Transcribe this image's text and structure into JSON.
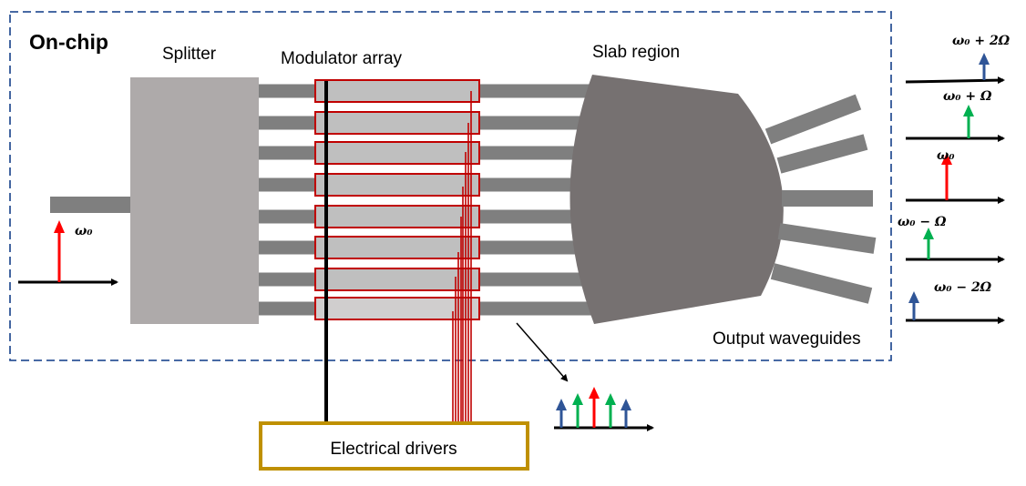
{
  "labels": {
    "on_chip": "On-chip",
    "splitter": "Splitter",
    "modulator_array": "Modulator array",
    "slab_region": "Slab region",
    "output_waveguides": "Output waveguides",
    "electrical_drivers": "Electrical drivers",
    "input_freq": "ω₀"
  },
  "outputs": [
    {
      "label": "ω₀ + 2Ω",
      "color": "#2F5597"
    },
    {
      "label": "ω₀ + Ω",
      "color": "#00B050"
    },
    {
      "label": "ω₀",
      "color": "#FF0000"
    },
    {
      "label": "ω₀ − Ω",
      "color": "#00B050"
    },
    {
      "label": "ω₀ − 2Ω",
      "color": "#2F5597"
    }
  ],
  "combined_spectrum_colors": [
    "#2F5597",
    "#00B050",
    "#FF0000",
    "#00B050",
    "#2F5597"
  ],
  "colors": {
    "chip_border": "#2F5597",
    "modulator_border": "#C00000",
    "driver_border": "#BF9000",
    "slab": "#767171",
    "splitter": "#AEAAAA",
    "waveguide": "#7F7F7F"
  },
  "modulator_count": 8
}
